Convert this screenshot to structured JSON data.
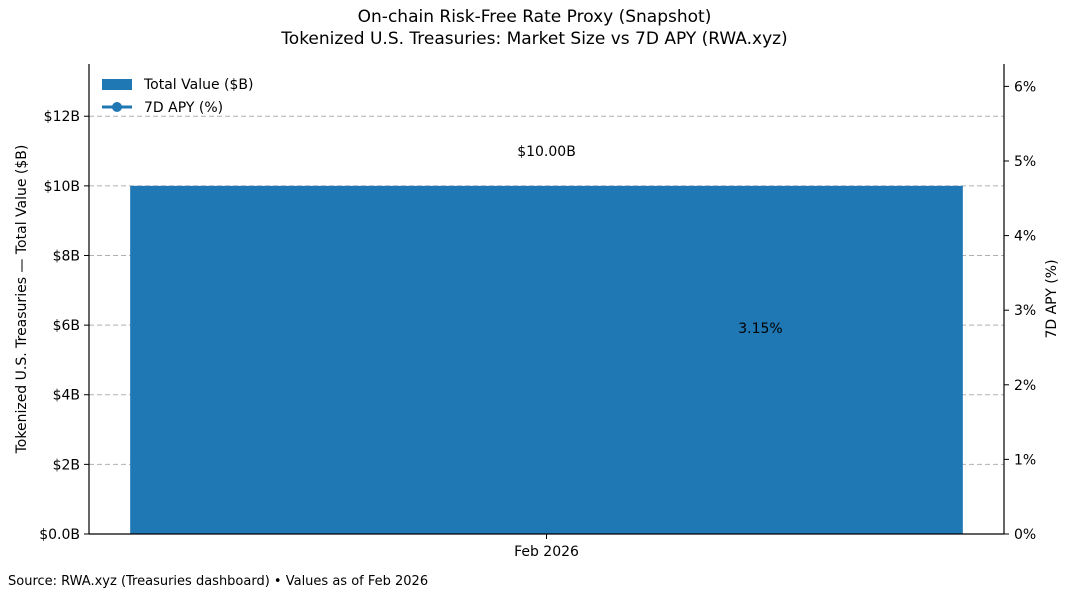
{
  "title": "On-chain Risk-Free Rate Proxy (Snapshot)",
  "subtitle": "Tokenized U.S. Treasuries: Market Size vs 7D APY (RWA.xyz)",
  "source_note": "Source: RWA.xyz (Treasuries dashboard) • Values as of Feb 2026",
  "chart_data": {
    "type": "bar",
    "categories": [
      "Feb 2026"
    ],
    "series": [
      {
        "name": "Total Value ($B)",
        "axis": "left",
        "kind": "bar",
        "values": [
          10.0
        ],
        "color": "#1f77b4",
        "value_label": "$10.00B"
      },
      {
        "name": "7D APY (%)",
        "axis": "right",
        "kind": "line",
        "marker": "circle",
        "values": [
          3.15
        ],
        "color": "#1f77b4",
        "value_label": "3.15%"
      }
    ],
    "ylabel": "Tokenized U.S. Treasuries — Total Value ($B)",
    "ylabel_right": "7D APY (%)",
    "ylim": [
      0,
      13.5
    ],
    "ylim_right": [
      0,
      6.3
    ],
    "yticks": [
      0,
      2,
      4,
      6,
      8,
      10,
      12
    ],
    "ytick_labels": [
      "$0.0B",
      "$2B",
      "$4B",
      "$6B",
      "$8B",
      "$10B",
      "$12B"
    ],
    "yticks_right": [
      0,
      1,
      2,
      3,
      4,
      5,
      6
    ],
    "ytick_labels_right": [
      "0%",
      "1%",
      "2%",
      "3%",
      "4%",
      "5%",
      "6%"
    ],
    "grid": "horizontal dashed",
    "legend": "top-left"
  }
}
